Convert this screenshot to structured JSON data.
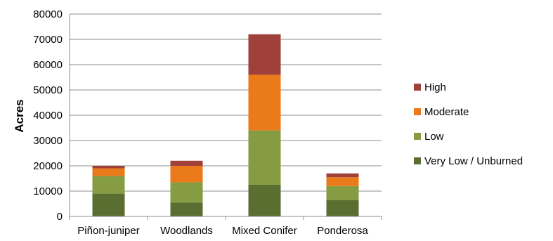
{
  "chart_data": {
    "type": "bar",
    "stacked": true,
    "categories": [
      "Piñon-juniper",
      "Woodlands",
      "Mixed Conifer",
      "Ponderosa"
    ],
    "series": [
      {
        "name": "Very Low / Unburned",
        "color": "#5b6e31",
        "values": [
          9000,
          5500,
          12500,
          6500
        ]
      },
      {
        "name": "Low",
        "color": "#869c43",
        "values": [
          7000,
          8000,
          21500,
          5500
        ]
      },
      {
        "name": "Moderate",
        "color": "#ea7a1a",
        "values": [
          3000,
          6500,
          22000,
          3500
        ]
      },
      {
        "name": "High",
        "color": "#a0403a",
        "values": [
          1000,
          2000,
          16000,
          1500
        ]
      }
    ],
    "title": "",
    "xlabel": "",
    "ylabel": "Acres",
    "ylim": [
      0,
      80000
    ],
    "yticks": [
      0,
      10000,
      20000,
      30000,
      40000,
      50000,
      60000,
      70000,
      80000
    ],
    "grid": true,
    "legend_position": "right",
    "legend_order": [
      "High",
      "Moderate",
      "Low",
      "Very Low / Unburned"
    ]
  }
}
